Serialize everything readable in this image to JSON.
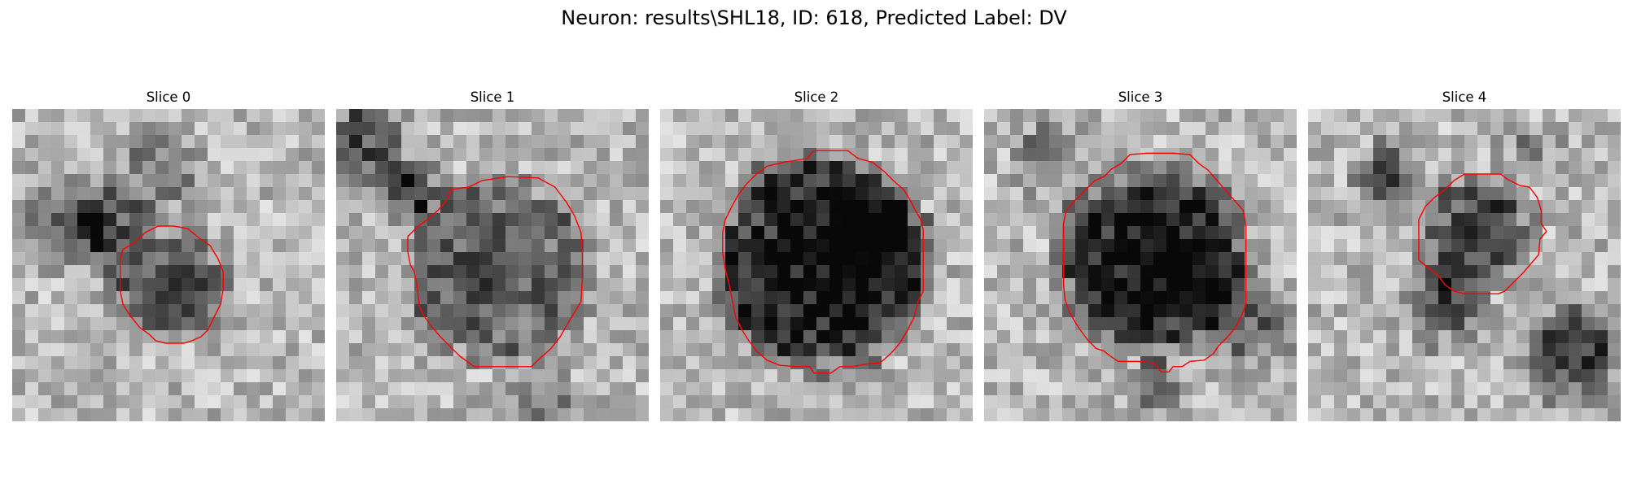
{
  "figure": {
    "title": "Neuron: results\\SHL18, ID: 618, Predicted Label: DV",
    "contour_color": "#ff0000",
    "colormap": "gray",
    "grid_size": 24
  },
  "slices": [
    {
      "label": "Slice 0"
    },
    {
      "label": "Slice 1"
    },
    {
      "label": "Slice 2"
    },
    {
      "label": "Slice 3"
    },
    {
      "label": "Slice 4"
    }
  ]
}
